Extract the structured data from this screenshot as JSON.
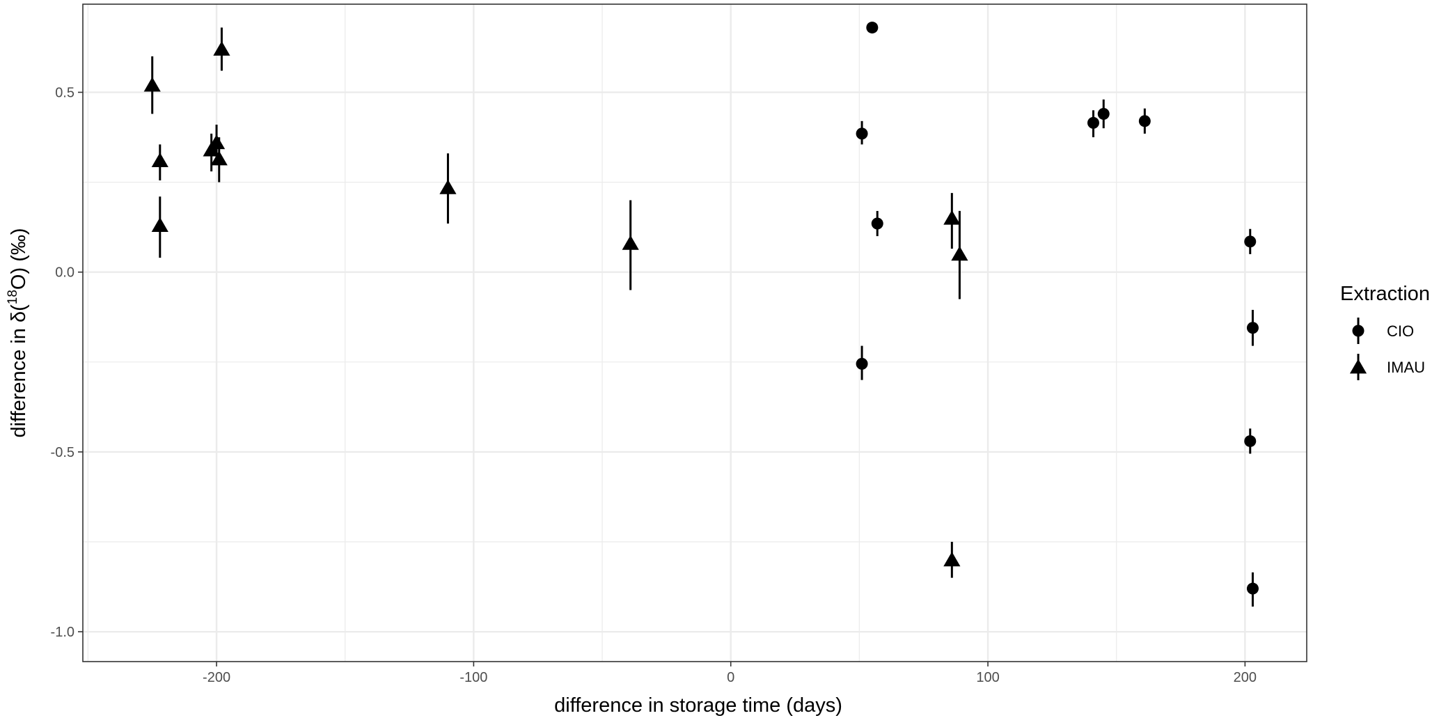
{
  "chart_data": {
    "type": "scatter",
    "title": "",
    "xlabel": "difference in storage time (days)",
    "ylabel_parts": {
      "pre": "difference in δ(",
      "sup": "18",
      "post": "O) (‰)"
    },
    "xlim": [
      -252,
      224
    ],
    "ylim": [
      -1.083,
      0.745
    ],
    "x_ticks": [
      -200,
      -100,
      0,
      100,
      200
    ],
    "x_tick_labels": [
      "-200",
      "-100",
      "0",
      "100",
      "200"
    ],
    "y_ticks": [
      -1.0,
      -0.5,
      0.0,
      0.5
    ],
    "y_tick_labels": [
      "-1.0",
      "-0.5",
      "0.0",
      "0.5"
    ],
    "grid": true,
    "legend": {
      "title": "Extraction",
      "position": "right",
      "entries": [
        {
          "name": "CIO",
          "shape": "circle"
        },
        {
          "name": "IMAU",
          "shape": "triangle"
        }
      ]
    },
    "colors": {
      "points": "#000000",
      "grid": "#ebebeb",
      "frame": "#333333"
    },
    "series": [
      {
        "name": "CIO",
        "shape": "circle",
        "points": [
          {
            "x": 55,
            "y": 0.68,
            "lo": 0.68,
            "hi": 0.68
          },
          {
            "x": 51,
            "y": 0.385,
            "lo": 0.355,
            "hi": 0.42
          },
          {
            "x": 57,
            "y": 0.135,
            "lo": 0.1,
            "hi": 0.17
          },
          {
            "x": 51,
            "y": -0.255,
            "lo": -0.3,
            "hi": -0.205
          },
          {
            "x": 141,
            "y": 0.415,
            "lo": 0.375,
            "hi": 0.45
          },
          {
            "x": 145,
            "y": 0.44,
            "lo": 0.4,
            "hi": 0.48
          },
          {
            "x": 161,
            "y": 0.42,
            "lo": 0.385,
            "hi": 0.455
          },
          {
            "x": 202,
            "y": 0.085,
            "lo": 0.05,
            "hi": 0.12
          },
          {
            "x": 203,
            "y": -0.155,
            "lo": -0.205,
            "hi": -0.105
          },
          {
            "x": 202,
            "y": -0.47,
            "lo": -0.505,
            "hi": -0.435
          },
          {
            "x": 203,
            "y": -0.88,
            "lo": -0.93,
            "hi": -0.835
          }
        ]
      },
      {
        "name": "IMAU",
        "shape": "triangle",
        "points": [
          {
            "x": -225,
            "y": 0.52,
            "lo": 0.44,
            "hi": 0.6
          },
          {
            "x": -222,
            "y": 0.31,
            "lo": 0.255,
            "hi": 0.355
          },
          {
            "x": -222,
            "y": 0.13,
            "lo": 0.04,
            "hi": 0.21
          },
          {
            "x": -202,
            "y": 0.34,
            "lo": 0.28,
            "hi": 0.385
          },
          {
            "x": -200,
            "y": 0.36,
            "lo": 0.3,
            "hi": 0.41
          },
          {
            "x": -199,
            "y": 0.315,
            "lo": 0.25,
            "hi": 0.375
          },
          {
            "x": -198,
            "y": 0.62,
            "lo": 0.56,
            "hi": 0.68
          },
          {
            "x": -110,
            "y": 0.235,
            "lo": 0.135,
            "hi": 0.33
          },
          {
            "x": -39,
            "y": 0.08,
            "lo": -0.05,
            "hi": 0.2
          },
          {
            "x": 86,
            "y": 0.15,
            "lo": 0.065,
            "hi": 0.22
          },
          {
            "x": 89,
            "y": 0.05,
            "lo": -0.075,
            "hi": 0.17
          },
          {
            "x": 86,
            "y": -0.8,
            "lo": -0.85,
            "hi": -0.75
          }
        ]
      }
    ]
  }
}
